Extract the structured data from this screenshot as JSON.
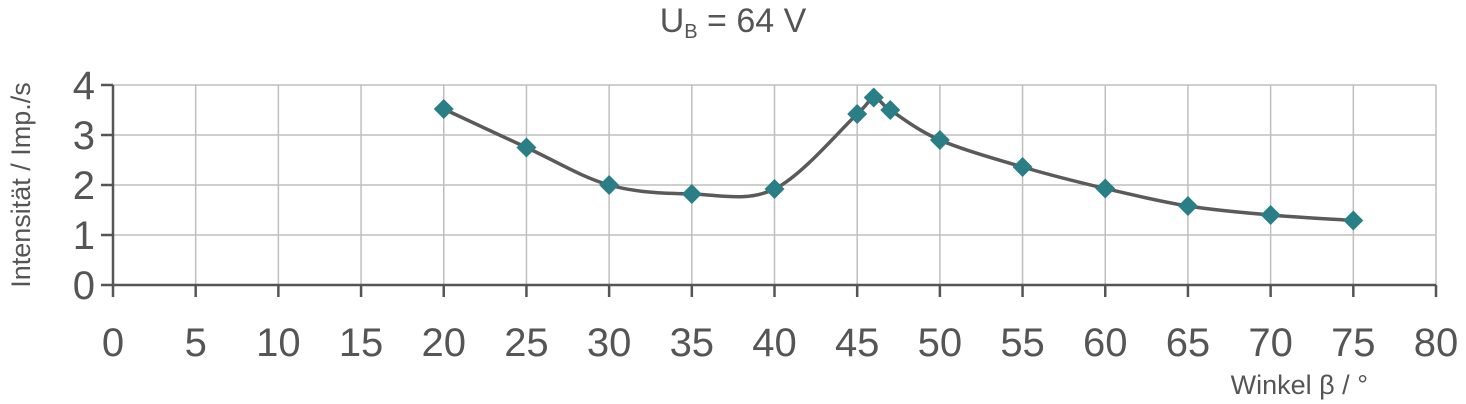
{
  "chart_data": {
    "type": "scatter",
    "title_main": "U",
    "title_sub": "B",
    "title_rest": " = 64 V",
    "xlabel": "Winkel β / °",
    "ylabel": "Intensität / Imp./s",
    "xlim": [
      0,
      80
    ],
    "ylim": [
      0,
      4
    ],
    "x_ticks": [
      0,
      5,
      10,
      15,
      20,
      25,
      30,
      35,
      40,
      45,
      50,
      55,
      60,
      65,
      70,
      75,
      80
    ],
    "y_ticks": [
      0,
      1,
      2,
      3,
      4
    ],
    "grid": true,
    "smooth_line": true,
    "colors": {
      "marker": "#2a7f86",
      "line": "#5a5a5a",
      "grid": "#bfbfbf",
      "axis": "#555555"
    },
    "series": [
      {
        "x": [
          20,
          25,
          30,
          35,
          40,
          45,
          46,
          47,
          50,
          55,
          60,
          65,
          70,
          75
        ],
        "y": [
          3.52,
          2.75,
          2.0,
          1.82,
          1.92,
          3.42,
          3.75,
          3.5,
          2.9,
          2.36,
          1.93,
          1.58,
          1.4,
          1.29
        ]
      }
    ]
  }
}
